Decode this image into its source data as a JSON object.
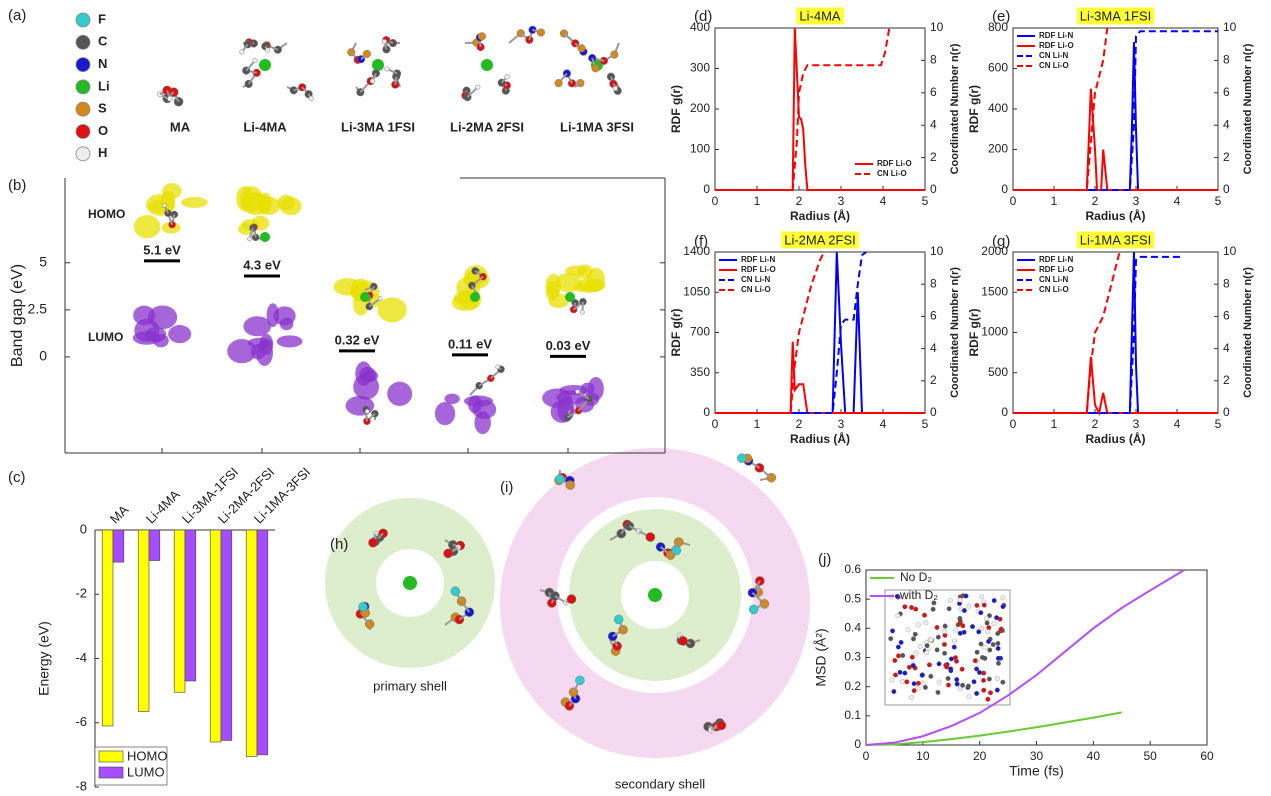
{
  "panel_a": {
    "panel": "(a)",
    "atoms": [
      {
        "label": "F",
        "color": "#33cccc"
      },
      {
        "label": "C",
        "color": "#555555"
      },
      {
        "label": "N",
        "color": "#1a1acc"
      },
      {
        "label": "Li",
        "color": "#22bb22"
      },
      {
        "label": "S",
        "color": "#d4881a"
      },
      {
        "label": "O",
        "color": "#dd1111"
      },
      {
        "label": "H",
        "color": "#eeeeee"
      }
    ],
    "molecules": [
      "MA",
      "Li-4MA",
      "Li-3MA 1FSI",
      "Li-2MA 2FSI",
      "Li-1MA 3FSI"
    ]
  },
  "panel_h": {
    "panel": "(h)",
    "label": "primary shell"
  },
  "panel_i": {
    "panel": "(i)",
    "label": "secondary shell"
  },
  "chart_data": [
    {
      "type": "level",
      "panel": "(b)",
      "ylabel": "Band gap (eV)",
      "ylim": [
        -5.1,
        9.5
      ],
      "yticks": [
        0,
        2.5,
        5
      ],
      "values": [
        5.1,
        4.3,
        0.32,
        0.11,
        0.03
      ],
      "value_labels": [
        "5.1 eV",
        "4.3 eV",
        "0.32 eV",
        "0.11 eV",
        "0.03 eV"
      ],
      "annotations": [
        "HOMO",
        "LUMO"
      ],
      "color": "#000000"
    },
    {
      "type": "bar",
      "panel": "(c)",
      "ylabel": "Energy (eV)",
      "categories": [
        "MA",
        "Li-4MA",
        "Li-3MA-1FSI",
        "Li-2MA-2FSI",
        "Li-1MA-3FSI"
      ],
      "series": [
        {
          "name": "HOMO",
          "color": "#ffff00",
          "values": [
            -6.1,
            -5.65,
            -5.05,
            -6.6,
            -7.05
          ]
        },
        {
          "name": "LUMO",
          "color": "#a64dff",
          "values": [
            -1.0,
            -0.95,
            -4.7,
            -6.55,
            -7.0
          ]
        }
      ],
      "ylim": [
        -8,
        0
      ],
      "yticks": [
        0,
        -2,
        -4,
        -6,
        -8
      ],
      "legend": "lower left"
    },
    {
      "type": "line",
      "panel": "(d)",
      "title": "Li-4MA",
      "xlabel": "Radius (Å)",
      "ylabel": "RDF g(r)",
      "y2label": "Coordinated Number n(r)",
      "xlim": [
        0,
        5
      ],
      "xticks": [
        0,
        1,
        2,
        3,
        4,
        5
      ],
      "ylim": [
        0,
        400
      ],
      "yticks": [
        0,
        100,
        200,
        300,
        400
      ],
      "y2lim": [
        0,
        10
      ],
      "y2ticks": [
        0,
        2,
        4,
        6,
        8,
        10
      ],
      "legend": "lower right",
      "series": [
        {
          "name": "RDF Li-O",
          "color": "#ff0000",
          "line_style": "solid",
          "x": [
            0,
            1.85,
            1.9,
            1.95,
            2.0,
            2.05,
            2.1,
            2.15,
            2.2,
            5
          ],
          "values": [
            0,
            0,
            400,
            290,
            180,
            175,
            150,
            60,
            0,
            0
          ]
        },
        {
          "name": "CN Li-O",
          "color": "#ff0000",
          "line_style": "dashed",
          "axis": "y2",
          "x": [
            0,
            1.85,
            1.95,
            2.0,
            2.1,
            2.2,
            3.95,
            4.05,
            4.15
          ],
          "values": [
            0,
            0,
            3,
            6,
            7.2,
            7.7,
            7.7,
            8.5,
            10
          ]
        }
      ]
    },
    {
      "type": "line",
      "panel": "(e)",
      "title": "Li-3MA 1FSI",
      "xlabel": "Radius (Å)",
      "ylabel": "RDF g(r)",
      "y2label": "Coordinated Number n(r)",
      "xlim": [
        0,
        5
      ],
      "xticks": [
        0,
        1,
        2,
        3,
        4,
        5
      ],
      "ylim": [
        0,
        800
      ],
      "yticks": [
        0,
        200,
        400,
        600,
        800
      ],
      "y2lim": [
        0,
        10
      ],
      "y2ticks": [
        0,
        2,
        4,
        6,
        8,
        10
      ],
      "legend": "upper left",
      "series": [
        {
          "name": "RDF Li-N",
          "color": "#0000ff",
          "line_style": "solid",
          "x": [
            0,
            2.85,
            2.9,
            2.95,
            3.0,
            3.05,
            5
          ],
          "values": [
            0,
            0,
            300,
            730,
            300,
            0,
            0
          ]
        },
        {
          "name": "RDF Li-O",
          "color": "#ff0000",
          "line_style": "solid",
          "x": [
            0,
            1.8,
            1.9,
            2.0,
            2.05,
            2.15,
            2.2,
            2.3,
            5
          ],
          "values": [
            0,
            0,
            500,
            200,
            0,
            0,
            200,
            0,
            0
          ]
        },
        {
          "name": "CN Li-N",
          "color": "#0000ff",
          "line_style": "dashed",
          "axis": "y2",
          "x": [
            0,
            2.85,
            2.95,
            3.0,
            3.1,
            5
          ],
          "values": [
            0,
            0,
            4,
            9.5,
            9.8,
            9.8
          ]
        },
        {
          "name": "CN Li-O",
          "color": "#ff0000",
          "line_style": "dashed",
          "axis": "y2",
          "x": [
            0,
            1.8,
            1.9,
            2.0,
            2.2,
            2.3
          ],
          "values": [
            0,
            0,
            3,
            6,
            8,
            10
          ]
        }
      ]
    },
    {
      "type": "line",
      "panel": "(f)",
      "title": "Li-2MA 2FSI",
      "xlabel": "Radius (Å)",
      "ylabel": "RDF g(r)",
      "y2label": "Coordinated Number n(r)",
      "xlim": [
        0,
        5
      ],
      "xticks": [
        0,
        1,
        2,
        3,
        4,
        5
      ],
      "ylim": [
        0,
        1400
      ],
      "yticks": [
        0,
        350,
        700,
        1050,
        1400
      ],
      "y2lim": [
        0,
        10
      ],
      "y2ticks": [
        0,
        2,
        4,
        6,
        8,
        10
      ],
      "legend": "upper left",
      "series": [
        {
          "name": "RDF Li-N",
          "color": "#0000ff",
          "line_style": "solid",
          "x": [
            0,
            2.8,
            2.9,
            3.0,
            3.1,
            3.3,
            3.4,
            3.5,
            5
          ],
          "values": [
            0,
            0,
            1400,
            600,
            0,
            0,
            1050,
            0,
            0
          ]
        },
        {
          "name": "RDF Li-O",
          "color": "#ff0000",
          "line_style": "solid",
          "x": [
            0,
            1.8,
            1.85,
            1.9,
            2.0,
            2.1,
            2.2,
            2.3,
            5
          ],
          "values": [
            0,
            0,
            620,
            200,
            250,
            250,
            0,
            0,
            0
          ]
        },
        {
          "name": "CN Li-N",
          "color": "#0000ff",
          "line_style": "dashed",
          "axis": "y2",
          "x": [
            0,
            2.8,
            2.9,
            3.0,
            3.1,
            3.3,
            3.4,
            3.5,
            3.6
          ],
          "values": [
            0,
            0,
            2.5,
            5.5,
            5.8,
            5.8,
            8,
            9.8,
            10
          ]
        },
        {
          "name": "CN Li-O",
          "color": "#ff0000",
          "line_style": "dashed",
          "axis": "y2",
          "x": [
            0,
            1.8,
            1.9,
            2.0,
            2.2,
            2.3,
            2.5,
            2.6
          ],
          "values": [
            0,
            0,
            3,
            5,
            7,
            8,
            9.5,
            10
          ]
        }
      ]
    },
    {
      "type": "line",
      "panel": "(g)",
      "title": "Li-1MA 3FSI",
      "xlabel": "Radius (Å)",
      "ylabel": "RDF g(r)",
      "y2label": "Coordinated Number n(r)",
      "xlim": [
        0,
        5
      ],
      "xticks": [
        0,
        1,
        2,
        3,
        4,
        5
      ],
      "ylim": [
        0,
        2000
      ],
      "yticks": [
        0,
        500,
        1000,
        1500,
        2000
      ],
      "y2lim": [
        0,
        10
      ],
      "y2ticks": [
        0,
        2,
        4,
        6,
        8,
        10
      ],
      "legend": "upper left",
      "series": [
        {
          "name": "RDF Li-N",
          "color": "#0000ff",
          "line_style": "solid",
          "x": [
            0,
            2.85,
            2.95,
            3.0,
            3.05,
            5
          ],
          "values": [
            0,
            0,
            2000,
            600,
            0,
            0
          ]
        },
        {
          "name": "RDF Li-O",
          "color": "#ff0000",
          "line_style": "solid",
          "x": [
            0,
            1.8,
            1.9,
            2.0,
            2.1,
            2.2,
            2.3,
            5
          ],
          "values": [
            0,
            0,
            700,
            100,
            0,
            250,
            0,
            0
          ]
        },
        {
          "name": "CN Li-N",
          "color": "#0000ff",
          "line_style": "dashed",
          "axis": "y2",
          "x": [
            0,
            2.85,
            2.95,
            3.0,
            3.1,
            4.1
          ],
          "values": [
            0,
            0,
            5,
            9.5,
            9.7,
            9.7
          ]
        },
        {
          "name": "CN Li-O",
          "color": "#ff0000",
          "line_style": "dashed",
          "axis": "y2",
          "x": [
            0,
            1.8,
            1.9,
            2.0,
            2.1,
            2.2,
            2.4,
            2.6
          ],
          "values": [
            0,
            0,
            3,
            5,
            5.5,
            6,
            8,
            10
          ]
        }
      ]
    },
    {
      "type": "line",
      "panel": "(j)",
      "xlabel": "Time (fs)",
      "ylabel": "MSD (Å²)",
      "xlim": [
        0,
        60
      ],
      "xticks": [
        0,
        10,
        20,
        30,
        40,
        50,
        60
      ],
      "ylim": [
        0,
        0.6
      ],
      "yticks": [
        0,
        0.1,
        0.2,
        0.3,
        0.4,
        0.5,
        0.6
      ],
      "legend": "upper left",
      "series": [
        {
          "name": "No D₂",
          "color": "#66cc33",
          "line_style": "solid",
          "x": [
            0,
            5,
            10,
            15,
            20,
            25,
            30,
            35,
            40,
            45
          ],
          "values": [
            0,
            0.002,
            0.01,
            0.02,
            0.032,
            0.046,
            0.061,
            0.077,
            0.094,
            0.112
          ]
        },
        {
          "name": "with D₂",
          "color": "#b44dff",
          "line_style": "solid",
          "x": [
            0,
            5,
            10,
            15,
            20,
            25,
            30,
            35,
            40,
            45,
            50,
            56
          ],
          "values": [
            0,
            0.008,
            0.03,
            0.065,
            0.11,
            0.17,
            0.24,
            0.32,
            0.4,
            0.47,
            0.53,
            0.6
          ]
        }
      ]
    }
  ]
}
